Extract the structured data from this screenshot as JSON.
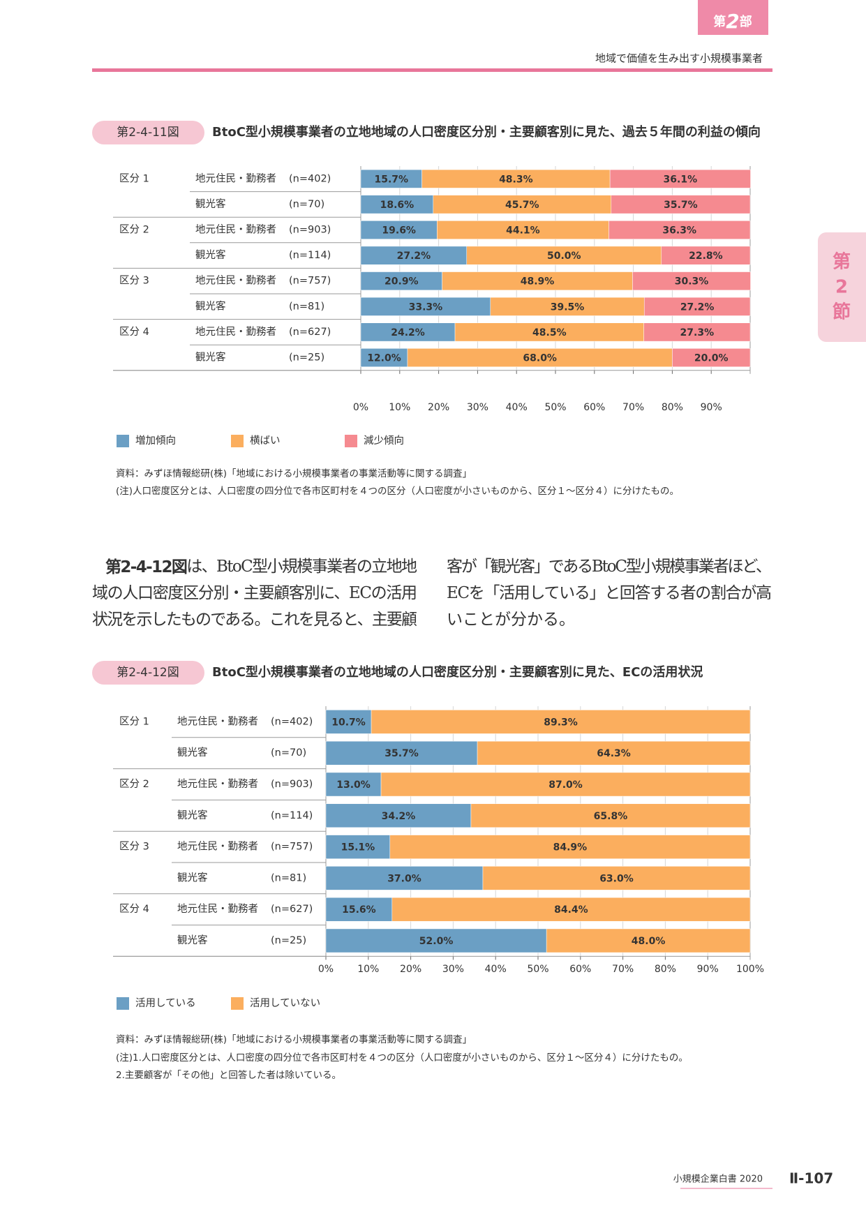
{
  "header": {
    "part_tab": {
      "prefix": "第",
      "number": "2",
      "suffix": "部"
    },
    "running_title": "地域で価値を生み出す小規模事業者",
    "section_tab": [
      "第",
      "2",
      "節"
    ]
  },
  "chart_data": [
    {
      "type": "stacked_bar_horizontal",
      "figure_label": "第2-4-11図",
      "title": "BtoC型小規模事業者の立地地域の人口密度区分別・主要顧客別に見た、過去５年間の利益の傾向",
      "groups": [
        "区分 1",
        "区分 2",
        "区分 3",
        "区分 4"
      ],
      "categories": [
        "地元住民・勤務者",
        "観光客",
        "地元住民・勤務者",
        "観光客",
        "地元住民・勤務者",
        "観光客",
        "地元住民・勤務者",
        "観光客"
      ],
      "sample_sizes": [
        "(n=402)",
        "(n=70)",
        "(n=903)",
        "(n=114)",
        "(n=757)",
        "(n=81)",
        "(n=627)",
        "(n=25)"
      ],
      "series": [
        {
          "name": "増加傾向",
          "color": "#6b9fc4",
          "values": [
            15.7,
            18.6,
            19.6,
            27.2,
            20.9,
            33.3,
            24.2,
            12.0
          ],
          "value_labels": [
            "15.7%",
            "18.6%",
            "19.6%",
            "27.2%",
            "20.9%",
            "33.3%",
            "24.2%",
            "12.0%"
          ]
        },
        {
          "name": "横ばい",
          "color": "#fbae5e",
          "values": [
            48.3,
            45.7,
            44.1,
            50.0,
            48.9,
            39.5,
            48.5,
            68.0
          ],
          "value_labels": [
            "48.3%",
            "45.7%",
            "44.1%",
            "50.0%",
            "48.9%",
            "39.5%",
            "48.5%",
            "68.0%"
          ]
        },
        {
          "name": "減少傾向",
          "color": "#f58a90",
          "values": [
            36.1,
            35.7,
            36.3,
            22.8,
            30.3,
            27.2,
            27.3,
            20.0
          ],
          "value_labels": [
            "36.1%",
            "35.7%",
            "36.3%",
            "22.8%",
            "30.3%",
            "27.2%",
            "27.3%",
            "20.0%"
          ]
        }
      ],
      "xlim": [
        0,
        100
      ],
      "xticks": [
        {
          "value": 0,
          "label": "0%"
        },
        {
          "value": 10,
          "label": "10%"
        },
        {
          "value": 20,
          "label": "20%"
        },
        {
          "value": 30,
          "label": "30%"
        },
        {
          "value": 40,
          "label": "40%"
        },
        {
          "value": 50,
          "label": "50%"
        },
        {
          "value": 60,
          "label": "60%"
        },
        {
          "value": 70,
          "label": "70%"
        },
        {
          "value": 80,
          "label": "80%"
        },
        {
          "value": 90,
          "label": "90%"
        }
      ],
      "grid": true,
      "notes": [
        "資料：みずほ情報総研(株)「地域における小規模事業者の事業活動等に関する調査」",
        "(注)人口密度区分とは、人口密度の四分位で各市区町村を４つの区分（人口密度が小さいものから、区分１～区分４）に分けたもの。"
      ]
    },
    {
      "type": "stacked_bar_horizontal",
      "figure_label": "第2-4-12図",
      "title": "BtoC型小規模事業者の立地地域の人口密度区分別・主要顧客別に見た、ECの活用状況",
      "groups": [
        "区分 1",
        "区分 2",
        "区分 3",
        "区分 4"
      ],
      "categories": [
        "地元住民・勤務者",
        "観光客",
        "地元住民・勤務者",
        "観光客",
        "地元住民・勤務者",
        "観光客",
        "地元住民・勤務者",
        "観光客"
      ],
      "sample_sizes": [
        "(n=402)",
        "(n=70)",
        "(n=903)",
        "(n=114)",
        "(n=757)",
        "(n=81)",
        "(n=627)",
        "(n=25)"
      ],
      "series": [
        {
          "name": "活用している",
          "color": "#6b9fc4",
          "values": [
            10.7,
            35.7,
            13.0,
            34.2,
            15.1,
            37.0,
            15.6,
            52.0
          ],
          "value_labels": [
            "10.7%",
            "35.7%",
            "13.0%",
            "34.2%",
            "15.1%",
            "37.0%",
            "15.6%",
            "52.0%"
          ]
        },
        {
          "name": "活用していない",
          "color": "#fbae5e",
          "values": [
            89.3,
            64.3,
            87.0,
            65.8,
            84.9,
            63.0,
            84.4,
            48.0
          ],
          "value_labels": [
            "89.3%",
            "64.3%",
            "87.0%",
            "65.8%",
            "84.9%",
            "63.0%",
            "84.4%",
            "48.0%"
          ]
        }
      ],
      "xlim": [
        0,
        100
      ],
      "xticks": [
        {
          "value": 0,
          "label": "0%"
        },
        {
          "value": 10,
          "label": "10%"
        },
        {
          "value": 20,
          "label": "20%"
        },
        {
          "value": 30,
          "label": "30%"
        },
        {
          "value": 40,
          "label": "40%"
        },
        {
          "value": 50,
          "label": "50%"
        },
        {
          "value": 60,
          "label": "60%"
        },
        {
          "value": 70,
          "label": "70%"
        },
        {
          "value": 80,
          "label": "80%"
        },
        {
          "value": 90,
          "label": "90%"
        },
        {
          "value": 100,
          "label": "100%"
        }
      ],
      "grid": true,
      "notes": [
        "資料：みずほ情報総研(株)「地域における小規模事業者の事業活動等に関する調査」",
        "(注)1.人口密度区分とは、人口密度の四分位で各市区町村を４つの区分（人口密度が小さいものから、区分１～区分４）に分けたもの。",
        "2.主要顧客が「その他」と回答した者は除いている。"
      ]
    }
  ],
  "body": {
    "lead": "第2-4-12図",
    "lines": [
      "は、BtoC型小規模事業者の立地地",
      "域の人口密度区分別・主要顧客別に、ECの活用",
      "状況を示したものである。これを見ると、主要顧",
      "客が「観光客」であるBtoC型小規模事業者ほど、",
      "ECを「活用している」と回答する者の割合が高",
      "いことが分かる。"
    ]
  },
  "footer": {
    "book": "小規模企業白書 2020",
    "page": "Ⅱ-107"
  }
}
